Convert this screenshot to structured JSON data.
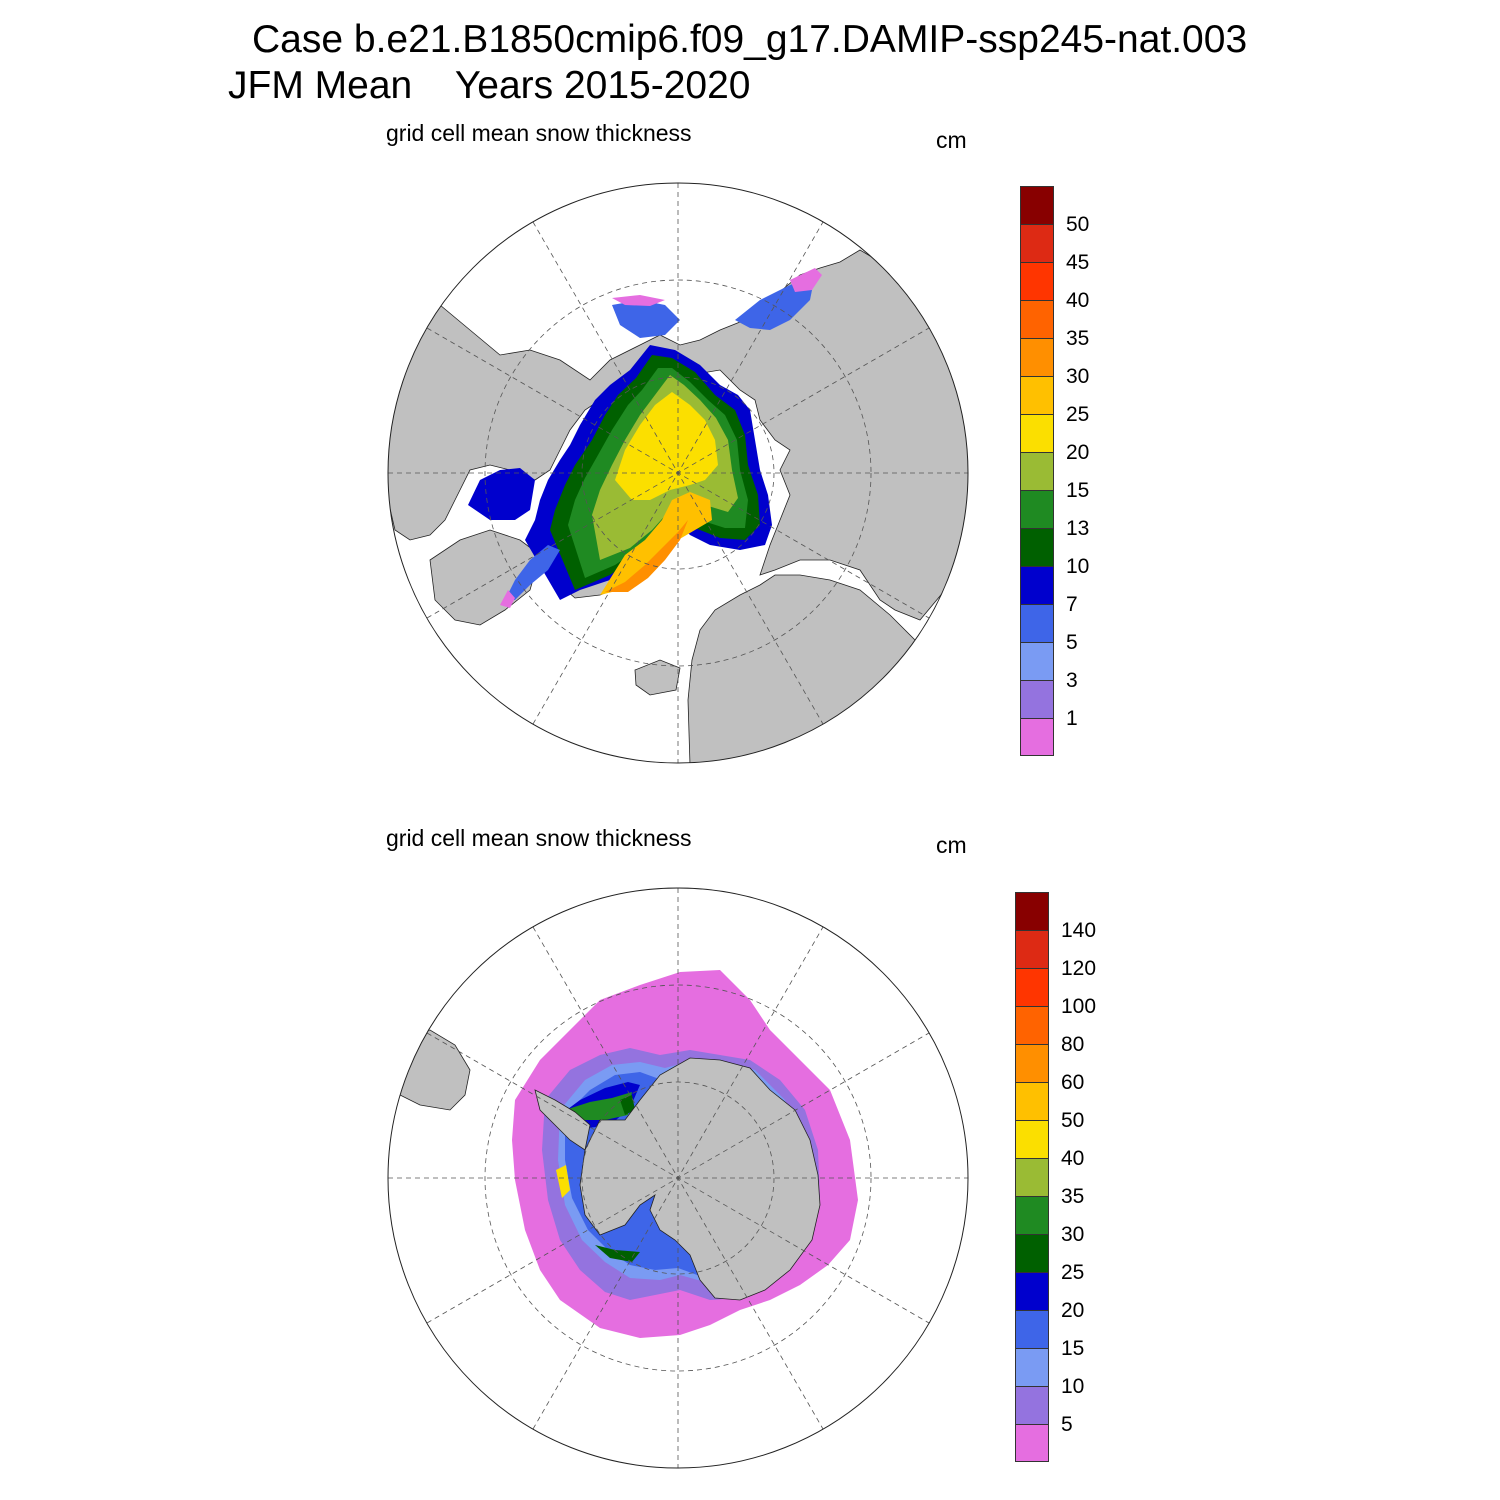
{
  "title": {
    "line1": "Case b.e21.B1850cmip6.f09_g17.DAMIP-ssp245-nat.003",
    "line2": "JFM Mean    Years 2015-2020"
  },
  "panels": [
    {
      "label": "grid cell mean snow thickness",
      "units": "cm",
      "hemisphere": "north",
      "colorbar": {
        "colors": [
          "#880000",
          "#dd2a14",
          "#ff3500",
          "#ff6300",
          "#ff8f00",
          "#ffc000",
          "#fbdf00",
          "#9abb34",
          "#1f8a22",
          "#006000",
          "#0000cd",
          "#3e65e8",
          "#7a9bf3",
          "#9473df",
          "#e56ee0"
        ],
        "labels": [
          "50",
          "45",
          "40",
          "35",
          "30",
          "25",
          "20",
          "15",
          "13",
          "10",
          "7",
          "5",
          "3",
          "1"
        ]
      }
    },
    {
      "label": "grid cell mean snow thickness",
      "units": "cm",
      "hemisphere": "south",
      "colorbar": {
        "colors": [
          "#880000",
          "#dd2a14",
          "#ff3500",
          "#ff6300",
          "#ff8f00",
          "#ffc000",
          "#fbdf00",
          "#9abb34",
          "#1f8a22",
          "#006000",
          "#0000cd",
          "#3e65e8",
          "#7a9bf3",
          "#9473df",
          "#e56ee0"
        ],
        "labels": [
          "140",
          "120",
          "100",
          "80",
          "60",
          "50",
          "40",
          "35",
          "30",
          "25",
          "20",
          "15",
          "10",
          "5"
        ]
      }
    }
  ],
  "colors": {
    "land": "#c0c0c0",
    "ocean": "#ffffff",
    "grid": "#555555"
  }
}
